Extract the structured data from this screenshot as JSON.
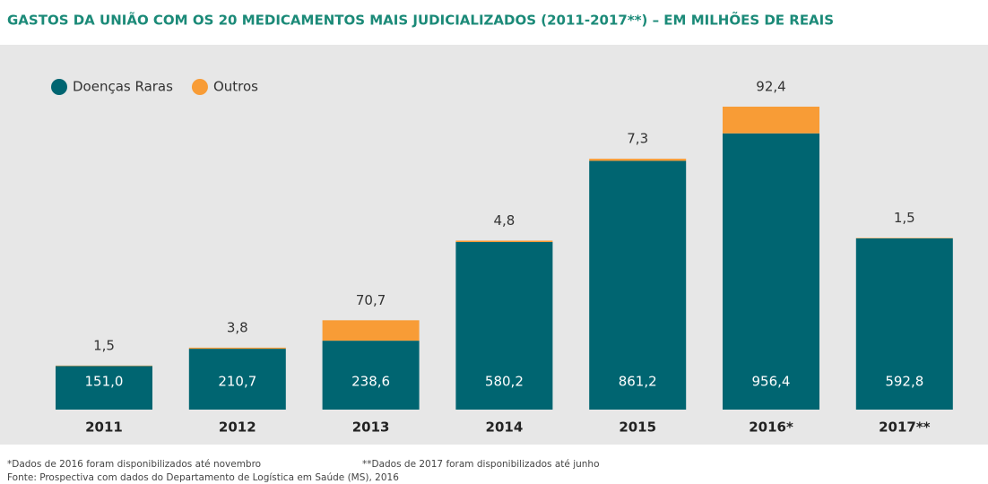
{
  "chart_data": {
    "type": "bar",
    "stacked": true,
    "title": "GASTOS DA UNIÃO COM OS 20 MEDICAMENTOS MAIS JUDICIALIZADOS (2011-2017**) – EM MILHÕES DE REAIS",
    "categories": [
      "2011",
      "2012",
      "2013",
      "2014",
      "2015",
      "2016*",
      "2017**"
    ],
    "series": [
      {
        "name": "Doenças Raras",
        "color": "#006571",
        "values": [
          151.0,
          210.7,
          238.6,
          580.2,
          861.2,
          956.4,
          592.8
        ],
        "value_labels": [
          "151,0",
          "210,7",
          "238,6",
          "580,2",
          "861,2",
          "956,4",
          "592,8"
        ]
      },
      {
        "name": "Outros",
        "color": "#f89c36",
        "values": [
          1.5,
          3.8,
          70.7,
          4.8,
          7.3,
          92.4,
          1.5
        ],
        "value_labels": [
          "1,5",
          "3,8",
          "70,7",
          "4,8",
          "7,3",
          "92,4",
          "1,5"
        ]
      }
    ],
    "legend": "top-left",
    "notes": [
      "*Dados de 2016 foram disponibilizados até novembro",
      "**Dados de 2017 foram disponibilizados até junho"
    ],
    "source": "Fonte: Prospectiva com dados do Departamento de Logística em Saúde (MS), 2016"
  }
}
